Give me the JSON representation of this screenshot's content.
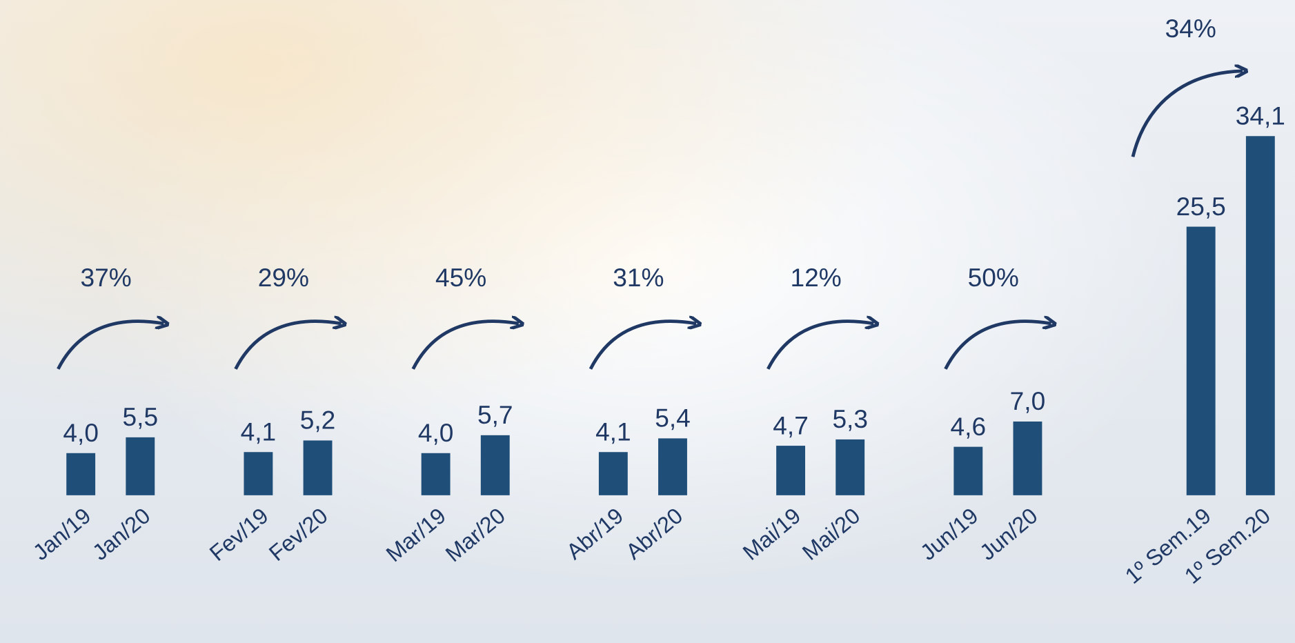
{
  "chart_data": {
    "type": "bar",
    "categories": [
      "Jan/19",
      "Jan/20",
      "Fev/19",
      "Fev/20",
      "Mar/19",
      "Mar/20",
      "Abr/19",
      "Abr/20",
      "Mai/19",
      "Mai/20",
      "Jun/19",
      "Jun/20",
      "1º Sem.19",
      "1º Sem.20"
    ],
    "values": [
      4.0,
      5.5,
      4.1,
      5.2,
      4.0,
      5.7,
      4.1,
      5.4,
      4.7,
      5.3,
      4.6,
      7.0,
      25.5,
      34.1
    ],
    "value_labels": [
      "4,0",
      "5,5",
      "4,1",
      "5,2",
      "4,0",
      "5,7",
      "4,1",
      "5,4",
      "4,7",
      "5,3",
      "4,6",
      "7,0",
      "25,5",
      "34,1"
    ],
    "color": "#1f4e79",
    "annotations": [
      "37%",
      "29%",
      "45%",
      "31%",
      "12%",
      "50%",
      "34%"
    ]
  }
}
